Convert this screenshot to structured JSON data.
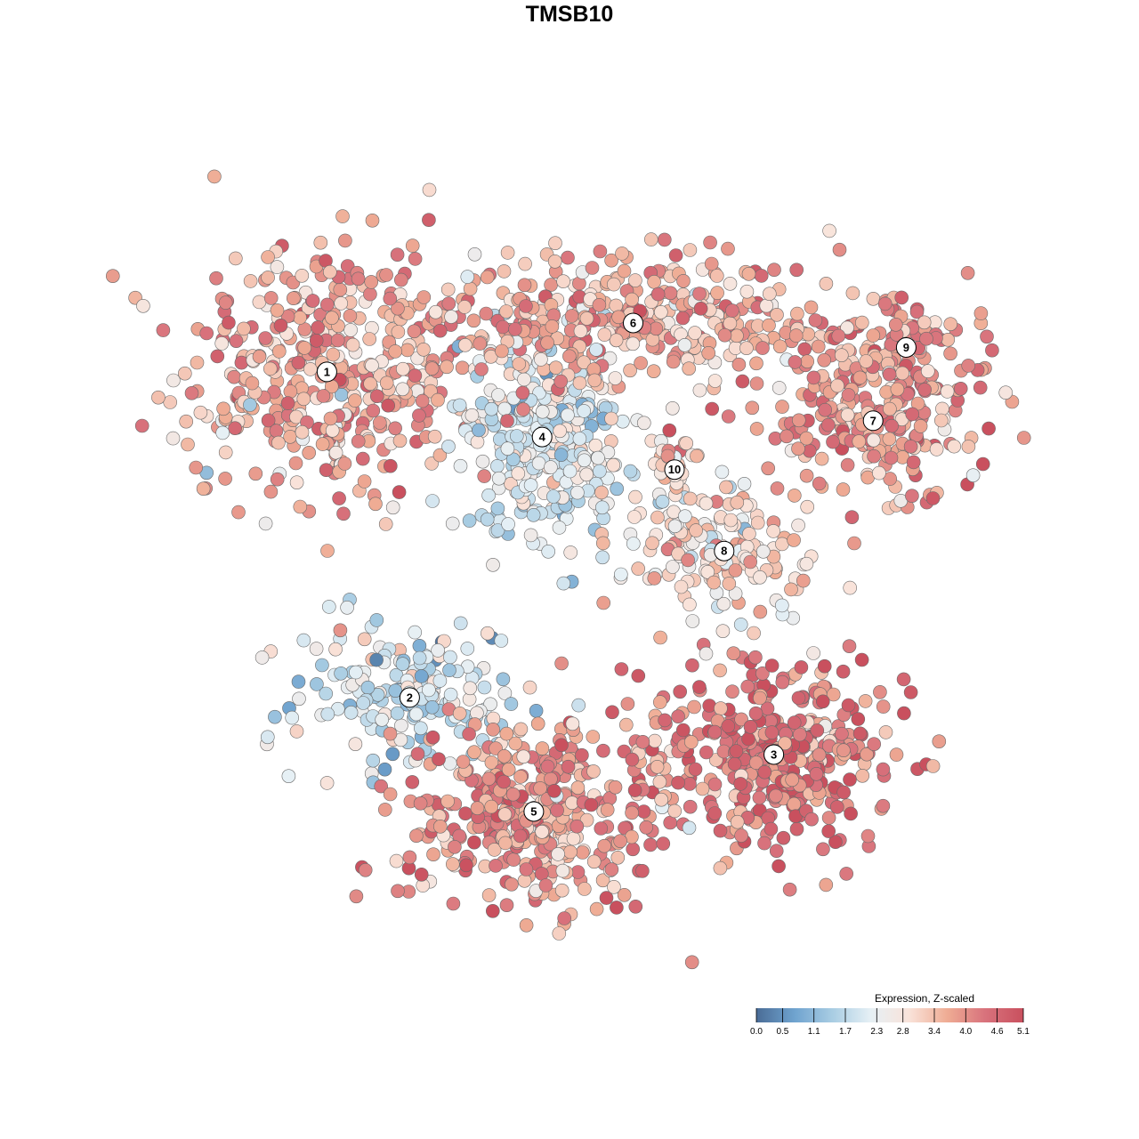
{
  "chart_data": {
    "type": "scatter",
    "title": "TMSB10",
    "xlabel": "",
    "ylabel": "",
    "grid": false,
    "legend": {
      "title": "Expression, Z-scaled",
      "placement": "bottom-right",
      "min": 0.0,
      "max": 5.1,
      "ticks": [
        "0.0",
        "0.5",
        "1.1",
        "1.7",
        "2.3",
        "2.8",
        "3.4",
        "4.0",
        "4.6",
        "5.1"
      ],
      "colors": [
        "#4a6c96",
        "#6fa3cf",
        "#a9cde3",
        "#e6f0f5",
        "#f9e3da",
        "#efac94",
        "#d8727c",
        "#c9505e"
      ]
    },
    "clusters": [
      {
        "id": "1",
        "label": "1",
        "x": 0.18,
        "y": 0.74,
        "expression_mean": 3.7
      },
      {
        "id": "2",
        "label": "2",
        "x": 0.28,
        "y": 0.34,
        "expression_mean": 1.9
      },
      {
        "id": "3",
        "label": "3",
        "x": 0.72,
        "y": 0.27,
        "expression_mean": 4.4
      },
      {
        "id": "4",
        "label": "4",
        "x": 0.44,
        "y": 0.66,
        "expression_mean": 2.1
      },
      {
        "id": "5",
        "label": "5",
        "x": 0.43,
        "y": 0.2,
        "expression_mean": 3.9
      },
      {
        "id": "6",
        "label": "6",
        "x": 0.55,
        "y": 0.8,
        "expression_mean": 3.6
      },
      {
        "id": "7",
        "label": "7",
        "x": 0.84,
        "y": 0.68,
        "expression_mean": 3.9
      },
      {
        "id": "8",
        "label": "8",
        "x": 0.66,
        "y": 0.52,
        "expression_mean": 3.0
      },
      {
        "id": "9",
        "label": "9",
        "x": 0.88,
        "y": 0.77,
        "expression_mean": 3.8
      },
      {
        "id": "10",
        "label": "10",
        "x": 0.6,
        "y": 0.62,
        "expression_mean": 2.9
      }
    ]
  }
}
